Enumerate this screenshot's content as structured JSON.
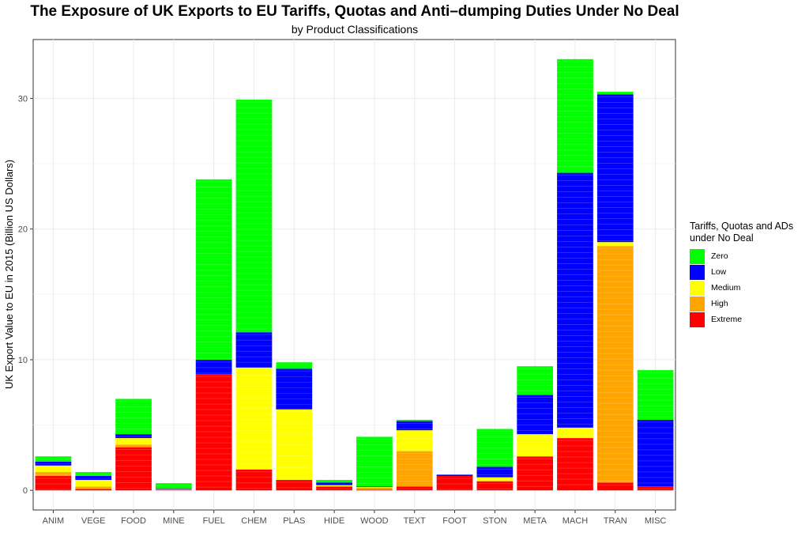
{
  "chart_data": {
    "type": "bar",
    "stacked": true,
    "title": "The Exposure of UK Exports to EU Tariffs, Quotas and Anti–dumping Duties Under No Deal",
    "subtitle": "by Product Classifications",
    "xlabel": "",
    "ylabel": "UK Export Value to EU in 2015 (Billion US Dollars)",
    "ylim": [
      -1.5,
      34.5
    ],
    "yticks": [
      0,
      10,
      20,
      30
    ],
    "grid": true,
    "legend_placement": "right",
    "legend_title": "Tariffs, Quotas and ADs under No Deal",
    "categories": [
      "ANIM",
      "VEGE",
      "FOOD",
      "MINE",
      "FUEL",
      "CHEM",
      "PLAS",
      "HIDE",
      "WOOD",
      "TEXT",
      "FOOT",
      "STON",
      "META",
      "MACH",
      "TRAN",
      "MISC"
    ],
    "series": [
      {
        "name": "Extreme",
        "color": "#ff0000",
        "values": [
          1.1,
          0.1,
          3.3,
          0.05,
          8.9,
          1.6,
          0.8,
          0.3,
          0.05,
          0.3,
          1.1,
          0.7,
          2.6,
          4.0,
          0.6,
          0.3
        ]
      },
      {
        "name": "High",
        "color": "#ffa500",
        "values": [
          0.3,
          0.2,
          0.2,
          0.0,
          0.0,
          0.0,
          0.0,
          0.0,
          0.15,
          2.7,
          0.0,
          0.0,
          0.0,
          0.0,
          18.1,
          0.0
        ]
      },
      {
        "name": "Medium",
        "color": "#ffff00",
        "values": [
          0.5,
          0.5,
          0.5,
          0.05,
          0.0,
          7.8,
          5.4,
          0.1,
          0.05,
          1.6,
          0.0,
          0.3,
          1.7,
          0.8,
          0.3,
          0.0
        ]
      },
      {
        "name": "Low",
        "color": "#0000ff",
        "values": [
          0.3,
          0.3,
          0.3,
          0.05,
          1.1,
          2.7,
          3.1,
          0.2,
          0.05,
          0.7,
          0.1,
          0.8,
          3.0,
          19.5,
          11.3,
          5.1
        ]
      },
      {
        "name": "Zero",
        "color": "#00ff00",
        "values": [
          0.4,
          0.3,
          2.7,
          0.4,
          13.8,
          17.8,
          0.5,
          0.2,
          3.8,
          0.1,
          0.0,
          2.9,
          2.2,
          8.7,
          0.2,
          3.8
        ]
      }
    ],
    "legend_order": [
      "Zero",
      "Low",
      "Medium",
      "High",
      "Extreme"
    ]
  }
}
